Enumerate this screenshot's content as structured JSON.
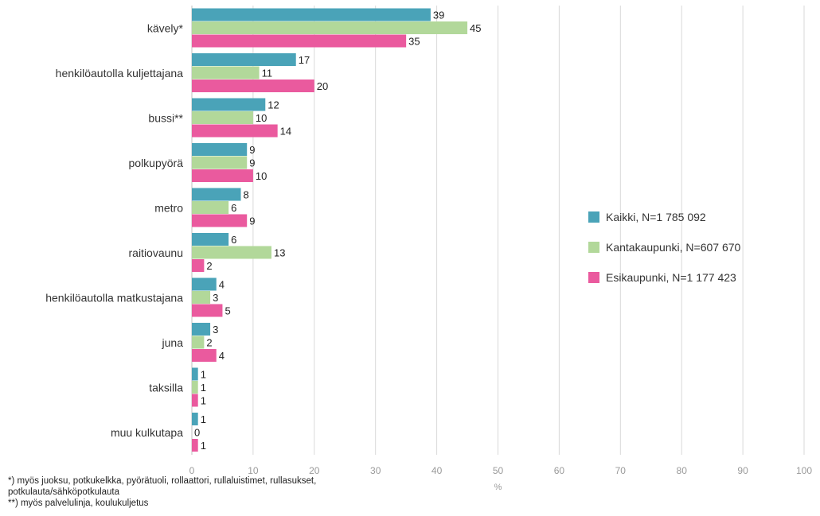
{
  "chart_data": {
    "type": "bar",
    "orientation": "horizontal",
    "categories": [
      "kävely*",
      "henkilöautolla kuljettajana",
      "bussi**",
      "polkupyörä",
      "metro",
      "raitiovaunu",
      "henkilöautolla matkustajana",
      "juna",
      "taksilla",
      "muu kulkutapa"
    ],
    "series": [
      {
        "name": "Kaikki, N=1 785 092",
        "color": "#4aa3b8",
        "values": [
          39,
          17,
          12,
          9,
          8,
          6,
          4,
          3,
          1,
          1
        ]
      },
      {
        "name": "Kantakaupunki, N=607 670",
        "color": "#b2d89a",
        "values": [
          45,
          11,
          10,
          9,
          6,
          13,
          3,
          2,
          1,
          0
        ]
      },
      {
        "name": "Esikaupunki, N=1 177 423",
        "color": "#ea5a9e",
        "values": [
          35,
          20,
          14,
          10,
          9,
          2,
          5,
          4,
          1,
          1
        ]
      }
    ],
    "xlabel": "%",
    "ylabel": "",
    "xlim": [
      0,
      100
    ],
    "xticks": [
      0,
      10,
      20,
      30,
      40,
      50,
      60,
      70,
      80,
      90,
      100
    ],
    "grid": true,
    "legend_position": "right"
  },
  "footnotes": {
    "note1": "*) myös juoksu, potkukelkka, pyörätuoli, rollaattori, rullaluistimet, rullasukset, potkulauta/sähköpotkulauta",
    "note2": "**) myös palvelulinja, koulukuljetus"
  }
}
